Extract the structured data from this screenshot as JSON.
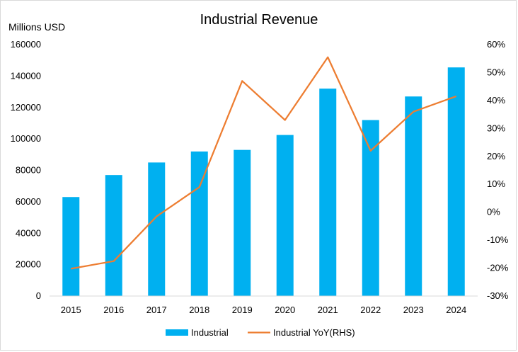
{
  "chart_data": {
    "type": "bar",
    "title": "Industrial Revenue",
    "ylabel": "Millions USD",
    "categories": [
      "2015",
      "2016",
      "2017",
      "2018",
      "2019",
      "2020",
      "2021",
      "2022",
      "2023",
      "2024"
    ],
    "series": [
      {
        "name": "Industrial",
        "type": "bar",
        "axis": "left",
        "color": "#00b0f0",
        "values": [
          63000,
          77000,
          85000,
          92000,
          93000,
          102500,
          132000,
          112000,
          127000,
          145500
        ]
      },
      {
        "name": "Industrial YoY(RHS)",
        "type": "line",
        "axis": "right",
        "color": "#ed7d31",
        "values": [
          -20.2,
          -17.5,
          -1.5,
          9.0,
          47.0,
          33.0,
          55.5,
          22.0,
          36.0,
          41.5
        ]
      }
    ],
    "ylim_left": [
      0,
      160000
    ],
    "yticks_left": [
      "0",
      "20000",
      "40000",
      "60000",
      "80000",
      "100000",
      "120000",
      "140000",
      "160000"
    ],
    "ylim_right": [
      -30,
      60
    ],
    "yticks_right": [
      "-30%",
      "-20%",
      "-10%",
      "0%",
      "10%",
      "20%",
      "30%",
      "40%",
      "50%",
      "60%"
    ],
    "grid": false,
    "legend": "bottom"
  }
}
